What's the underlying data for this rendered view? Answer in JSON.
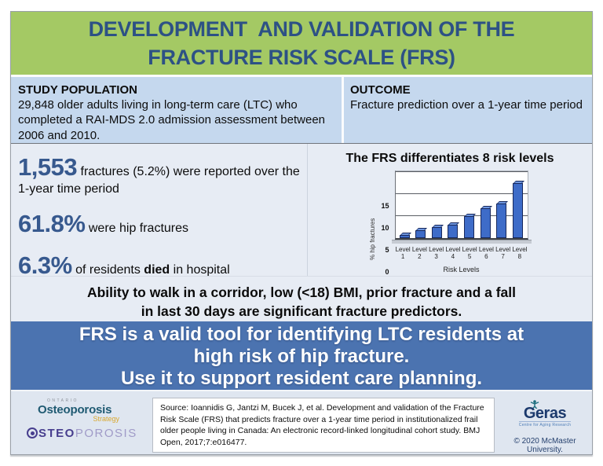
{
  "title": {
    "line1": "DEVELOPMENT  AND VALIDATION OF THE",
    "line2": "FRACTURE RISK SCALE (FRS)"
  },
  "study_population": {
    "heading": "STUDY POPULATION",
    "body": "29,848 older adults living in long-term care (LTC) who completed a RAI-MDS 2.0 admission assessment between 2006 and 2010."
  },
  "outcome": {
    "heading": "OUTCOME",
    "body": "Fracture prediction over a 1-year time period"
  },
  "stats": [
    {
      "value": "1,553",
      "rest": "fractures (5.2%) were reported over the",
      "rest2": "1-year time period"
    },
    {
      "value": "61.8%",
      "rest": "were hip fractures"
    },
    {
      "value": "6.3%",
      "pre": "of residents",
      "bold": "died",
      "post": "in hospital"
    }
  ],
  "chart_data": {
    "type": "bar",
    "title": "The FRS differentiates 8 risk levels",
    "categories": [
      "Level 1",
      "Level 2",
      "Level 3",
      "Level 4",
      "Level 5",
      "Level 6",
      "Level 7",
      "Level 8"
    ],
    "values": [
      0.6,
      1.7,
      2.4,
      3.0,
      5.0,
      6.8,
      7.8,
      12.5
    ],
    "xlabel": "Risk Levels",
    "ylabel": "% hip fractures",
    "ylim": [
      0,
      15
    ],
    "yticks": [
      0,
      5,
      10,
      15
    ],
    "grid": true,
    "bar_color": "#3e6cc8"
  },
  "predictors": {
    "line1": "Ability to walk in a corridor, low (<18) BMI, prior fracture and a fall",
    "line2": "in last 30 days are significant fracture predictors."
  },
  "banner": {
    "line1": "FRS is a valid tool for identifying LTC residents at",
    "line2": "high risk of hip fracture.",
    "line3": "Use it to support resident care planning."
  },
  "footer": {
    "source": "Source: Ioannidis G, Jantzi M, Bucek J, et al. Development and validation of the Fracture Risk Scale (FRS) that predicts fracture over a 1-year time period in institutionalized frail older people living in Canada: An electronic record-linked longitudinal cohort study. BMJ Open, 2017;7:e016477.",
    "oos_logo": {
      "ontario": "ONTARIO",
      "name": "Osteoporosis",
      "strategy": "Strategy",
      "caps_bold": "STEO",
      "caps_light": "POROSIS"
    },
    "geras": {
      "name": "Geras",
      "tagline": "Centre for Aging Research"
    },
    "copyright": "© 2020 McMaster University."
  },
  "colors": {
    "header_bg": "#a4c964",
    "header_text": "#2d5185",
    "population_row_bg": "#c5d8ee",
    "stats_bg": "#e7ecf4",
    "stat_number": "#37598e",
    "banner_bg": "#4b73b0",
    "banner_text": "#ffffff",
    "footer_bg": "#dfe6f0",
    "bar_fill": "#3e6cc8",
    "bar_edge": "#17285c"
  }
}
